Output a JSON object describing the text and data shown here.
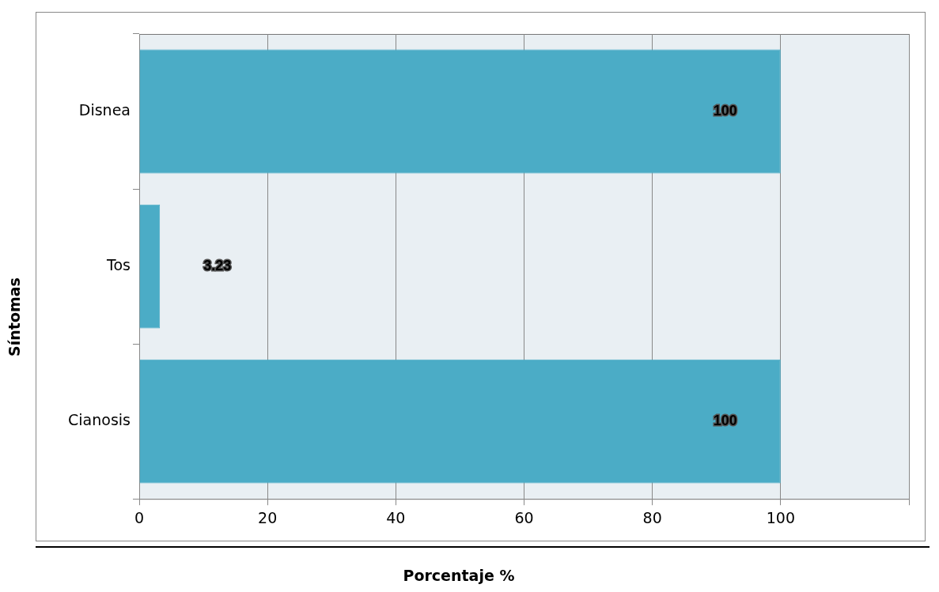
{
  "chart_data": {
    "type": "bar",
    "orientation": "horizontal",
    "xlabel": "Porcentaje %",
    "ylabel": "Síntomas",
    "categories": [
      "Disnea",
      "Tos",
      "Cianosis"
    ],
    "values": [
      100,
      3.23,
      100
    ],
    "color": "#4bacc6",
    "xlim": [
      0,
      120
    ],
    "xticks": [
      0,
      20,
      40,
      60,
      80,
      100,
      {
        "value": 120,
        "label": null
      }
    ],
    "grid": "x",
    "data_labels": true
  }
}
